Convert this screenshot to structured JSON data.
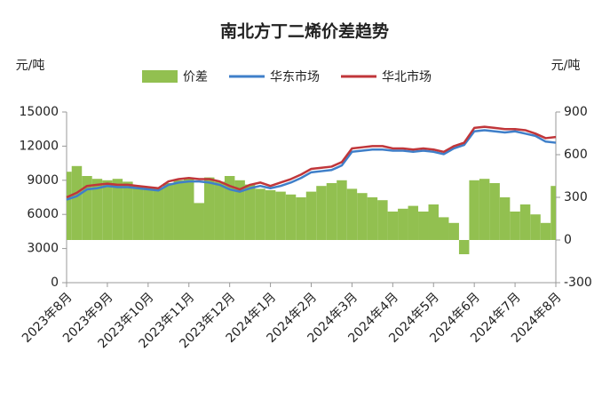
{
  "chart_data": {
    "type": "combo",
    "title": "南北方丁二烯价差趋势",
    "y_label": "元/吨",
    "y2_label": "元/吨",
    "categories": [
      "2023年8月",
      null,
      null,
      null,
      "2023年9月",
      null,
      null,
      null,
      "2023年10月",
      null,
      null,
      null,
      "2023年11月",
      null,
      null,
      null,
      "2023年12月",
      null,
      null,
      null,
      "2024年1月",
      null,
      null,
      null,
      "2024年2月",
      null,
      null,
      null,
      "2024年3月",
      null,
      null,
      null,
      "2024年4月",
      null,
      null,
      null,
      "2024年5月",
      null,
      null,
      null,
      "2024年6月",
      null,
      null,
      null,
      "2024年7月",
      null,
      null,
      null,
      "2024年8月"
    ],
    "series": [
      {
        "name": "价差",
        "type": "area",
        "axis": "y2",
        "color": "#92c050",
        "values": [
          480,
          520,
          450,
          430,
          420,
          430,
          410,
          380,
          370,
          360,
          400,
          420,
          430,
          260,
          440,
          410,
          450,
          420,
          390,
          360,
          350,
          340,
          320,
          300,
          340,
          380,
          400,
          420,
          360,
          330,
          300,
          280,
          200,
          220,
          240,
          200,
          250,
          160,
          120,
          -100,
          420,
          430,
          400,
          300,
          200,
          250,
          180,
          120,
          380
        ]
      },
      {
        "name": "华东市场",
        "type": "line",
        "color": "#3f7fc9",
        "values": [
          7300,
          7600,
          8200,
          8300,
          8500,
          8400,
          8400,
          8300,
          8200,
          8100,
          8600,
          8800,
          8900,
          8900,
          8800,
          8600,
          8200,
          8000,
          8300,
          8500,
          8300,
          8500,
          8800,
          9200,
          9700,
          9800,
          9900,
          10300,
          11500,
          11600,
          11700,
          11700,
          11600,
          11600,
          11500,
          11600,
          11500,
          11300,
          11800,
          12100,
          13300,
          13400,
          13300,
          13200,
          13300,
          13100,
          12900,
          12400,
          12300
        ]
      },
      {
        "name": "华北市场",
        "type": "line",
        "color": "#c0363a",
        "values": [
          7500,
          7900,
          8500,
          8600,
          8700,
          8600,
          8600,
          8500,
          8400,
          8300,
          8900,
          9100,
          9200,
          9100,
          9100,
          8900,
          8500,
          8200,
          8600,
          8800,
          8500,
          8800,
          9100,
          9500,
          10000,
          10100,
          10200,
          10600,
          11800,
          11900,
          12000,
          12000,
          11800,
          11800,
          11700,
          11800,
          11700,
          11500,
          12000,
          12300,
          13600,
          13700,
          13600,
          13500,
          13500,
          13400,
          13100,
          12700,
          12800
        ]
      }
    ],
    "ylim": [
      0,
      15000
    ],
    "yticks": [
      0,
      3000,
      6000,
      9000,
      12000,
      15000
    ],
    "y2lim": [
      -300,
      900
    ],
    "y2ticks": [
      -300,
      0,
      300,
      600,
      900
    ]
  }
}
